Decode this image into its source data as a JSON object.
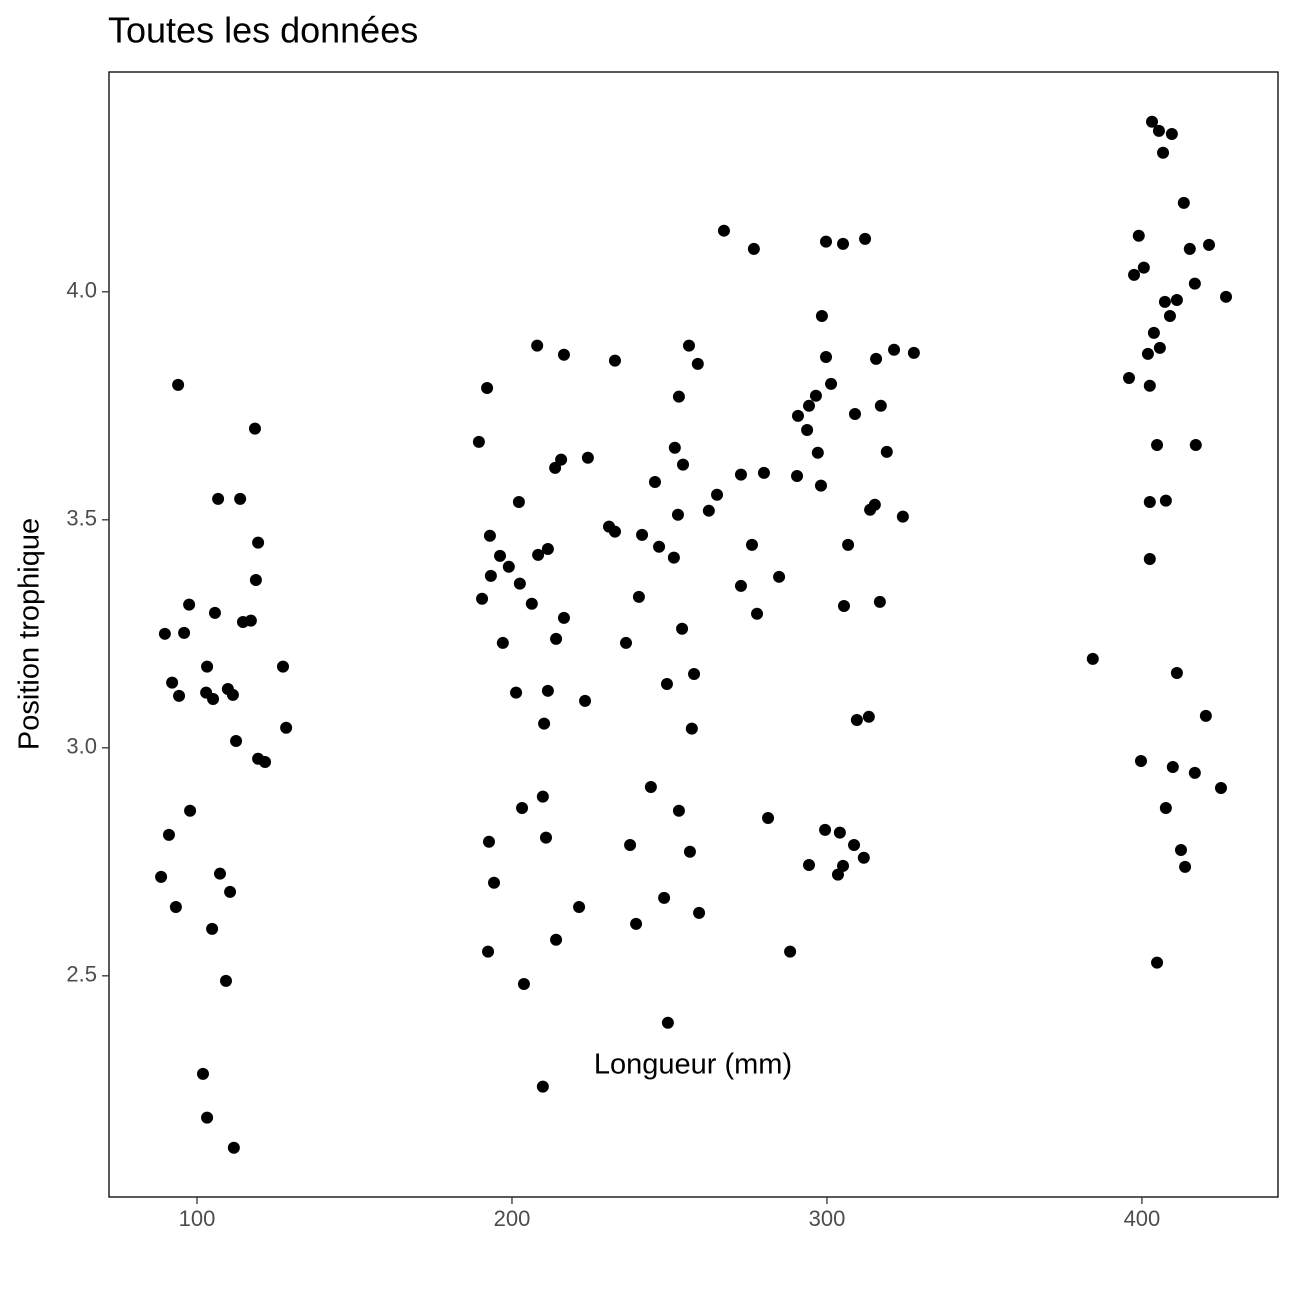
{
  "chart_data": {
    "type": "scatter",
    "title": "Toutes les données",
    "x_label": "Longueur (mm)",
    "y_label": "Position trophique",
    "color": "#000000",
    "xlim": [
      72.06,
      443.2
    ],
    "ylim": [
      2.015,
      4.482
    ],
    "xticks": [
      100,
      200,
      300,
      400
    ],
    "yticks": [
      {
        "value": 2.5,
        "label": "2.5"
      },
      {
        "value": 3,
        "label": "3.0"
      },
      {
        "value": 3.5,
        "label": "3.5"
      },
      {
        "value": 4,
        "label": "4.0"
      }
    ],
    "x": [
      94.0,
      118.4,
      106.7,
      113.7,
      119.4,
      118.7,
      97.5,
      105.7,
      89.8,
      95.9,
      114.6,
      117.1,
      103.2,
      127.3,
      92.1,
      94.3,
      102.9,
      105.1,
      109.8,
      111.4,
      128.3,
      112.4,
      119.4,
      121.6,
      97.8,
      91.1,
      88.6,
      107.3,
      93.3,
      110.5,
      104.8,
      109.2,
      101.9,
      103.2,
      111.7,
      189.5,
      192.1,
      208.0,
      216.5,
      232.7,
      256.2,
      259.0,
      253.0,
      267.3,
      276.8,
      299.7,
      305.1,
      312.1,
      298.4,
      299.7,
      301.3,
      296.5,
      294.3,
      290.8,
      315.6,
      321.3,
      327.6,
      317.1,
      308.9,
      293.7,
      297.1,
      319.0,
      298.1,
      290.5,
      280.0,
      272.7,
      265.1,
      262.5,
      252.7,
      254.3,
      251.7,
      245.4,
      224.1,
      215.6,
      213.7,
      202.2,
      193.0,
      230.8,
      232.7,
      241.3,
      246.7,
      251.4,
      211.4,
      208.3,
      196.2,
      199.0,
      193.3,
      202.5,
      190.5,
      206.3,
      240.3,
      216.5,
      254.0,
      214.0,
      236.2,
      197.1,
      257.8,
      249.2,
      201.3,
      211.4,
      223.2,
      210.2,
      257.1,
      276.2,
      306.7,
      284.8,
      272.7,
      277.8,
      305.4,
      316.8,
      324.1,
      313.7,
      315.2,
      309.5,
      313.3,
      244.1,
      209.8,
      203.2,
      210.8,
      192.7,
      237.5,
      253.0,
      256.5,
      194.3,
      299.4,
      304.1,
      308.6,
      311.7,
      305.1,
      303.5,
      294.3,
      281.3,
      248.3,
      221.3,
      259.4,
      239.4,
      214.0,
      192.4,
      288.3,
      203.8,
      249.5,
      209.8,
      403.2,
      405.4,
      409.5,
      406.7,
      413.3,
      399.0,
      415.2,
      421.3,
      400.6,
      397.5,
      416.8,
      426.7,
      407.3,
      411.1,
      408.9,
      403.8,
      405.7,
      401.9,
      395.9,
      402.5,
      404.8,
      417.1,
      402.5,
      407.6,
      402.5,
      384.4,
      411.1,
      420.3,
      399.7,
      409.8,
      416.8,
      425.1,
      407.6,
      412.4,
      413.7,
      404.8
    ],
    "values": [
      3.796,
      3.7,
      3.546,
      3.546,
      3.45,
      3.368,
      3.314,
      3.296,
      3.25,
      3.252,
      3.276,
      3.279,
      3.178,
      3.178,
      3.143,
      3.114,
      3.121,
      3.107,
      3.129,
      3.116,
      3.044,
      3.015,
      2.976,
      2.969,
      2.862,
      2.809,
      2.717,
      2.724,
      2.651,
      2.684,
      2.603,
      2.489,
      2.285,
      2.189,
      2.123,
      3.671,
      3.789,
      3.882,
      3.862,
      3.849,
      3.882,
      3.842,
      3.77,
      4.134,
      4.094,
      4.11,
      4.105,
      4.116,
      3.947,
      3.857,
      3.798,
      3.772,
      3.75,
      3.728,
      3.853,
      3.873,
      3.866,
      3.75,
      3.732,
      3.697,
      3.647,
      3.649,
      3.575,
      3.596,
      3.603,
      3.599,
      3.555,
      3.52,
      3.511,
      3.621,
      3.658,
      3.583,
      3.636,
      3.632,
      3.614,
      3.539,
      3.465,
      3.485,
      3.474,
      3.467,
      3.441,
      3.417,
      3.436,
      3.423,
      3.421,
      3.397,
      3.377,
      3.36,
      3.327,
      3.316,
      3.331,
      3.285,
      3.261,
      3.239,
      3.23,
      3.23,
      3.162,
      3.14,
      3.121,
      3.125,
      3.103,
      3.053,
      3.042,
      3.445,
      3.445,
      3.375,
      3.355,
      3.294,
      3.311,
      3.32,
      3.507,
      3.522,
      3.533,
      3.061,
      3.068,
      2.914,
      2.893,
      2.868,
      2.803,
      2.794,
      2.787,
      2.862,
      2.772,
      2.704,
      2.82,
      2.814,
      2.787,
      2.759,
      2.741,
      2.722,
      2.743,
      2.846,
      2.671,
      2.651,
      2.638,
      2.614,
      2.579,
      2.553,
      2.553,
      2.482,
      2.397,
      2.257,
      4.373,
      4.353,
      4.346,
      4.305,
      4.195,
      4.123,
      4.094,
      4.103,
      4.053,
      4.037,
      4.018,
      3.989,
      3.978,
      3.982,
      3.947,
      3.91,
      3.877,
      3.864,
      3.811,
      3.794,
      3.664,
      3.664,
      3.539,
      3.542,
      3.414,
      3.195,
      3.164,
      3.07,
      2.971,
      2.958,
      2.945,
      2.912,
      2.868,
      2.776,
      2.739,
      2.529
    ]
  }
}
